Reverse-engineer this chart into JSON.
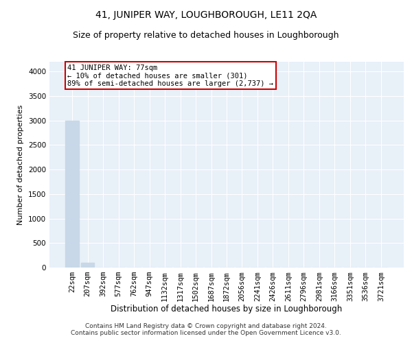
{
  "title": "41, JUNIPER WAY, LOUGHBOROUGH, LE11 2QA",
  "subtitle": "Size of property relative to detached houses in Loughborough",
  "xlabel": "Distribution of detached houses by size in Loughborough",
  "ylabel": "Number of detached properties",
  "categories": [
    "22sqm",
    "207sqm",
    "392sqm",
    "577sqm",
    "762sqm",
    "947sqm",
    "1132sqm",
    "1317sqm",
    "1502sqm",
    "1687sqm",
    "1872sqm",
    "2056sqm",
    "2241sqm",
    "2426sqm",
    "2611sqm",
    "2796sqm",
    "2981sqm",
    "3166sqm",
    "3351sqm",
    "3536sqm",
    "3721sqm"
  ],
  "values": [
    3000,
    100,
    2,
    1,
    1,
    1,
    1,
    1,
    1,
    1,
    1,
    1,
    1,
    1,
    1,
    1,
    1,
    1,
    1,
    1,
    1
  ],
  "bar_color": "#c8d8e8",
  "background_color": "#e8f0f8",
  "grid_color": "#ffffff",
  "annotation_box_color": "#cc0000",
  "annotation_text": "41 JUNIPER WAY: 77sqm\n← 10% of detached houses are smaller (301)\n89% of semi-detached houses are larger (2,737) →",
  "annotation_fontsize": 7.5,
  "footer": "Contains HM Land Registry data © Crown copyright and database right 2024.\nContains public sector information licensed under the Open Government Licence v3.0.",
  "ylim": [
    0,
    4200
  ],
  "yticks": [
    0,
    500,
    1000,
    1500,
    2000,
    2500,
    3000,
    3500,
    4000
  ],
  "title_fontsize": 10,
  "subtitle_fontsize": 9,
  "xlabel_fontsize": 8.5,
  "ylabel_fontsize": 8,
  "tick_fontsize": 7.5,
  "footer_fontsize": 6.5
}
